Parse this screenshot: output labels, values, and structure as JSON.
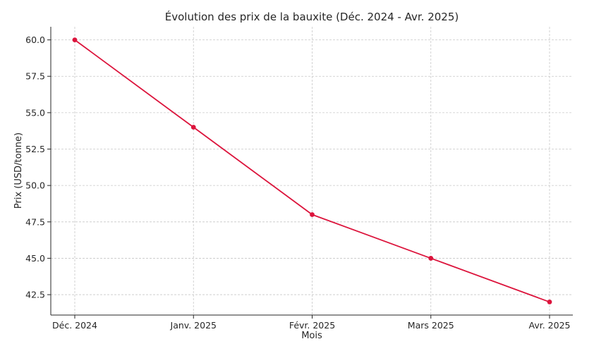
{
  "chart_data": {
    "type": "line",
    "title": "Évolution des prix de la bauxite (Déc. 2024 - Avr. 2025)",
    "xlabel": "Mois",
    "ylabel": "Prix (USD/tonne)",
    "categories": [
      "Déc. 2024",
      "Janv. 2025",
      "Févr. 2025",
      "Mars 2025",
      "Avr. 2025"
    ],
    "series": [
      {
        "values": [
          60,
          54,
          48,
          45,
          42
        ],
        "color": "#dc143c",
        "marker": "circle"
      }
    ],
    "ylim": [
      41.1,
      60.9
    ],
    "yticks": [
      "42.5",
      "45.0",
      "47.5",
      "50.0",
      "52.5",
      "55.0",
      "57.5",
      "60.0"
    ],
    "grid": true,
    "grid_style": "dashed"
  }
}
